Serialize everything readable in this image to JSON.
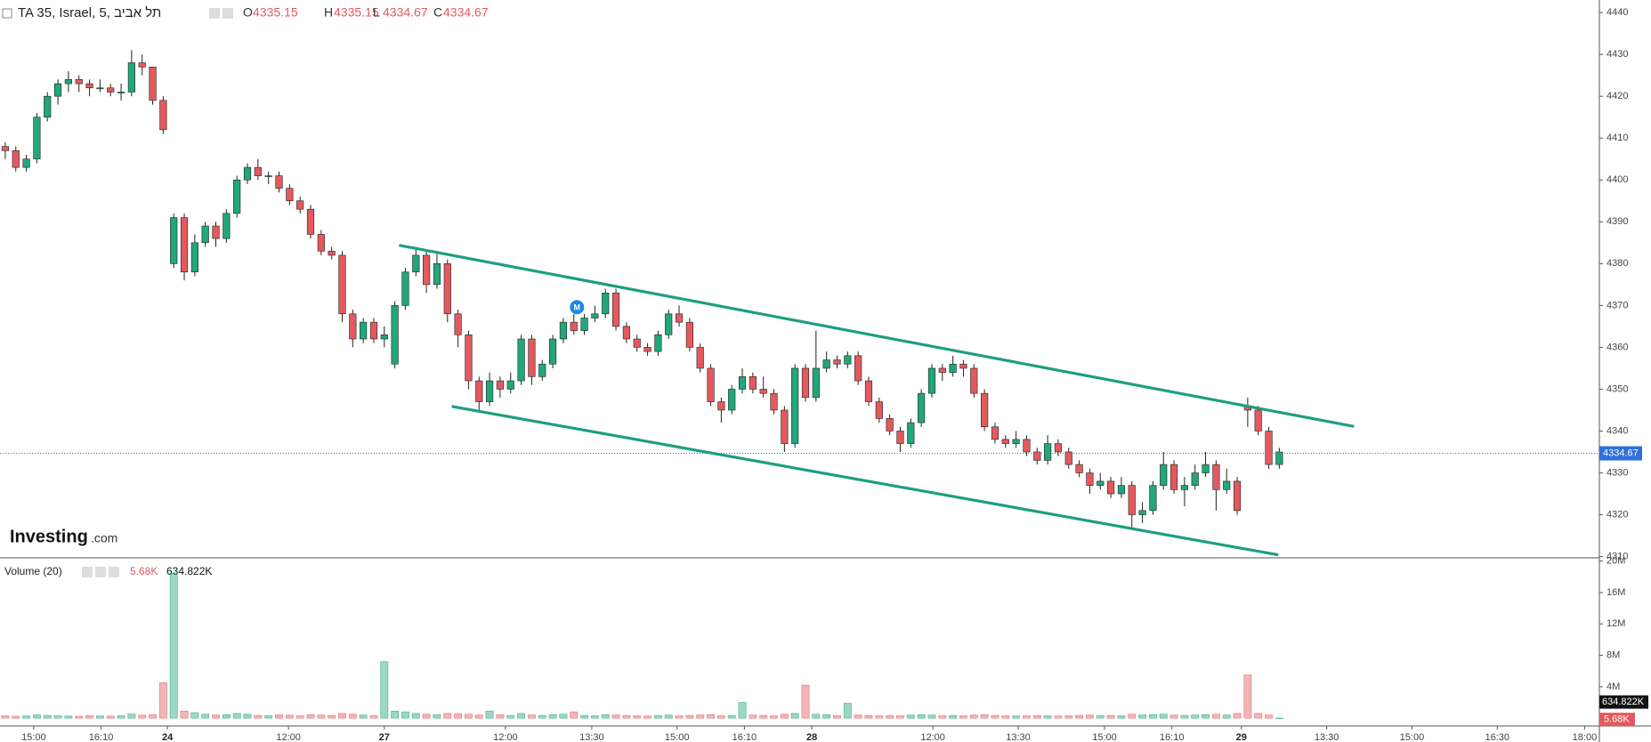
{
  "chart_data": {
    "type": "candlestick",
    "title": "TA 35, Israel, 5, תל אביב",
    "ohlc_labels": [
      "O",
      "H",
      "L",
      "C"
    ],
    "ohlc_values": [
      4335.15,
      4335.15,
      4334.67,
      4334.67
    ],
    "logo": {
      "name": "Investing",
      "suffix": ".com"
    },
    "up_color": "#22a67b",
    "down_color": "#e25a5e",
    "candles": [
      [
        4408,
        4409,
        4405,
        4407
      ],
      [
        4407,
        4408,
        4402,
        4403
      ],
      [
        4403,
        4406,
        4402,
        4405
      ],
      [
        4405,
        4416,
        4404,
        4415
      ],
      [
        4415,
        4421,
        4414,
        4420
      ],
      [
        4420,
        4424,
        4418,
        4423
      ],
      [
        4423,
        4426,
        4421,
        4424
      ],
      [
        4424,
        4425,
        4421,
        4423
      ],
      [
        4423,
        4424,
        4420,
        4422
      ],
      [
        4422,
        4424,
        4421,
        4422
      ],
      [
        4422,
        4423,
        4420,
        4421
      ],
      [
        4421,
        4423,
        4419,
        4421
      ],
      [
        4421,
        4431,
        4420,
        4428
      ],
      [
        4428,
        4430,
        4425,
        4427
      ],
      [
        4427,
        4427,
        4418,
        4419
      ],
      [
        4419,
        4420,
        4411,
        4412
      ],
      [
        4380,
        4392,
        4379,
        4391
      ],
      [
        4391,
        4392,
        4376,
        4378
      ],
      [
        4378,
        4387,
        4377,
        4385
      ],
      [
        4385,
        4390,
        4384,
        4389
      ],
      [
        4389,
        4390,
        4384,
        4386
      ],
      [
        4386,
        4393,
        4385,
        4392
      ],
      [
        4392,
        4401,
        4391,
        4400
      ],
      [
        4400,
        4404,
        4399,
        4403
      ],
      [
        4403,
        4405,
        4400,
        4401
      ],
      [
        4401,
        4402,
        4399,
        4401
      ],
      [
        4401,
        4402,
        4397,
        4398
      ],
      [
        4398,
        4399,
        4394,
        4395
      ],
      [
        4395,
        4396,
        4392,
        4393
      ],
      [
        4393,
        4394,
        4386,
        4387
      ],
      [
        4387,
        4388,
        4382,
        4383
      ],
      [
        4383,
        4384,
        4381,
        4382
      ],
      [
        4382,
        4383,
        4366,
        4368
      ],
      [
        4368,
        4369,
        4360,
        4362
      ],
      [
        4362,
        4367,
        4361,
        4366
      ],
      [
        4366,
        4367,
        4361,
        4362
      ],
      [
        4362,
        4365,
        4360,
        4363
      ],
      [
        4356,
        4371,
        4355,
        4370
      ],
      [
        4370,
        4379,
        4369,
        4378
      ],
      [
        4378,
        4384,
        4377,
        4382
      ],
      [
        4382,
        4383,
        4373,
        4375
      ],
      [
        4375,
        4383,
        4374,
        4380
      ],
      [
        4380,
        4381,
        4366,
        4368
      ],
      [
        4368,
        4369,
        4360,
        4363
      ],
      [
        4363,
        4364,
        4350,
        4352
      ],
      [
        4352,
        4353,
        4345,
        4347
      ],
      [
        4347,
        4354,
        4346,
        4352
      ],
      [
        4352,
        4353,
        4348,
        4350
      ],
      [
        4350,
        4354,
        4349,
        4352
      ],
      [
        4352,
        4363,
        4351,
        4362
      ],
      [
        4362,
        4363,
        4351,
        4353
      ],
      [
        4353,
        4357,
        4352,
        4356
      ],
      [
        4356,
        4363,
        4355,
        4362
      ],
      [
        4362,
        4367,
        4361,
        4366
      ],
      [
        4366,
        4368,
        4363,
        4364
      ],
      [
        4364,
        4368,
        4363,
        4367
      ],
      [
        4367,
        4370,
        4366,
        4368
      ],
      [
        4368,
        4374,
        4367,
        4373
      ],
      [
        4373,
        4374,
        4364,
        4365
      ],
      [
        4365,
        4366,
        4361,
        4362
      ],
      [
        4362,
        4363,
        4359,
        4360
      ],
      [
        4360,
        4361,
        4358,
        4359
      ],
      [
        4359,
        4364,
        4358,
        4363
      ],
      [
        4363,
        4369,
        4362,
        4368
      ],
      [
        4368,
        4370,
        4365,
        4366
      ],
      [
        4366,
        4367,
        4359,
        4360
      ],
      [
        4360,
        4361,
        4354,
        4355
      ],
      [
        4355,
        4356,
        4346,
        4347
      ],
      [
        4347,
        4348,
        4342,
        4345
      ],
      [
        4345,
        4351,
        4344,
        4350
      ],
      [
        4350,
        4355,
        4349,
        4353
      ],
      [
        4353,
        4354,
        4349,
        4350
      ],
      [
        4350,
        4353,
        4348,
        4349
      ],
      [
        4349,
        4350,
        4344,
        4345
      ],
      [
        4345,
        4346,
        4335,
        4337
      ],
      [
        4337,
        4356,
        4336,
        4355
      ],
      [
        4355,
        4356,
        4347,
        4348
      ],
      [
        4348,
        4364,
        4347,
        4355
      ],
      [
        4355,
        4359,
        4354,
        4357
      ],
      [
        4357,
        4358,
        4355,
        4356
      ],
      [
        4356,
        4359,
        4355,
        4358
      ],
      [
        4358,
        4359,
        4351,
        4352
      ],
      [
        4352,
        4353,
        4346,
        4347
      ],
      [
        4347,
        4348,
        4342,
        4343
      ],
      [
        4343,
        4344,
        4339,
        4340
      ],
      [
        4340,
        4341,
        4335,
        4337
      ],
      [
        4337,
        4343,
        4336,
        4342
      ],
      [
        4342,
        4350,
        4341,
        4349
      ],
      [
        4349,
        4356,
        4348,
        4355
      ],
      [
        4355,
        4356,
        4352,
        4354
      ],
      [
        4354,
        4358,
        4353,
        4356
      ],
      [
        4356,
        4357,
        4353,
        4355
      ],
      [
        4355,
        4356,
        4348,
        4349
      ],
      [
        4349,
        4350,
        4340,
        4341
      ],
      [
        4341,
        4342,
        4337,
        4338
      ],
      [
        4338,
        4339,
        4336,
        4337
      ],
      [
        4337,
        4340,
        4336,
        4338
      ],
      [
        4338,
        4339,
        4334,
        4335
      ],
      [
        4335,
        4336,
        4332,
        4333
      ],
      [
        4333,
        4339,
        4332,
        4337
      ],
      [
        4337,
        4338,
        4334,
        4335
      ],
      [
        4335,
        4336,
        4331,
        4332
      ],
      [
        4332,
        4333,
        4329,
        4330
      ],
      [
        4330,
        4331,
        4325,
        4327
      ],
      [
        4327,
        4330,
        4326,
        4328
      ],
      [
        4328,
        4329,
        4324,
        4325
      ],
      [
        4325,
        4329,
        4324,
        4327
      ],
      [
        4327,
        4328,
        4317,
        4320
      ],
      [
        4320,
        4323,
        4318,
        4321
      ],
      [
        4321,
        4328,
        4320,
        4327
      ],
      [
        4327,
        4335,
        4326,
        4332
      ],
      [
        4332,
        4333,
        4325,
        4326
      ],
      [
        4326,
        4329,
        4322,
        4327
      ],
      [
        4327,
        4332,
        4326,
        4330
      ],
      [
        4330,
        4335,
        4329,
        4332
      ],
      [
        4332,
        4333,
        4321,
        4326
      ],
      [
        4326,
        4331,
        4325,
        4328
      ],
      [
        4328,
        4329,
        4320,
        4321
      ],
      [
        4346,
        4348,
        4341,
        4345
      ],
      [
        4345,
        4346,
        4339,
        4340
      ],
      [
        4340,
        4341,
        4331,
        4332
      ],
      [
        4332,
        4336,
        4331,
        4335
      ]
    ],
    "xlim": [
      -0.5,
      151.4
    ],
    "xticks": [
      {
        "value": 2.7,
        "label": "15:00"
      },
      {
        "value": 9.1,
        "label": "16:10"
      },
      {
        "value": 15.4,
        "label": "24"
      },
      {
        "value": 26.9,
        "label": "12:00"
      },
      {
        "value": 36,
        "label": "27"
      },
      {
        "value": 47.5,
        "label": "12:00"
      },
      {
        "value": 55.7,
        "label": "13:30"
      },
      {
        "value": 63.8,
        "label": "15:00"
      },
      {
        "value": 70.2,
        "label": "16:10"
      },
      {
        "value": 76.6,
        "label": "28"
      },
      {
        "value": 88.1,
        "label": "12:00"
      },
      {
        "value": 96.2,
        "label": "13:30"
      },
      {
        "value": 104.4,
        "label": "15:00"
      },
      {
        "value": 110.8,
        "label": "16:10"
      },
      {
        "value": 117.4,
        "label": "29"
      },
      {
        "value": 125.5,
        "label": "13:30"
      },
      {
        "value": 133.6,
        "label": "15:00"
      },
      {
        "value": 141.7,
        "label": "16:30"
      },
      {
        "value": 150,
        "label": "18:00"
      }
    ],
    "ylim": [
      4309.7,
      4443
    ],
    "yticks": [
      4310,
      4320,
      4330,
      4340,
      4350,
      4360,
      4370,
      4380,
      4390,
      4400,
      4410,
      4420,
      4430,
      4440
    ],
    "last_price": 4334.67,
    "last_price_color": "#2f6fde",
    "trendlines": [
      {
        "x": [
          37.4,
          128.1
        ],
        "y": [
          4384.4,
          4341.1
        ]
      },
      {
        "x": [
          42.4,
          120.9
        ],
        "y": [
          4345.9,
          4310.4
        ]
      }
    ],
    "trendline_color": "#1f9e80",
    "events": [
      {
        "x": 54.3,
        "y": 4369.6,
        "label": "M"
      }
    ],
    "volume": {
      "name": "Volume (20)",
      "current_label": "5.68K",
      "ma_label": "634.822K",
      "current": 5680,
      "ma": 634822,
      "values": [
        300000,
        250000,
        280000,
        420000,
        350000,
        300000,
        260000,
        240000,
        310000,
        280000,
        260000,
        300000,
        520000,
        380000,
        450000,
        4500000,
        18500000,
        900000,
        700000,
        500000,
        400000,
        450000,
        600000,
        500000,
        350000,
        300000,
        420000,
        380000,
        300000,
        450000,
        400000,
        350000,
        600000,
        500000,
        400000,
        350000,
        7200000,
        900000,
        800000,
        600000,
        500000,
        450000,
        600000,
        550000,
        500000,
        400000,
        900000,
        450000,
        350000,
        600000,
        400000,
        350000,
        450000,
        500000,
        800000,
        350000,
        300000,
        450000,
        400000,
        350000,
        300000,
        280000,
        350000,
        400000,
        300000,
        350000,
        400000,
        450000,
        300000,
        350000,
        2000000,
        400000,
        350000,
        300000,
        500000,
        600000,
        4200000,
        500000,
        450000,
        350000,
        1900000,
        400000,
        350000,
        300000,
        350000,
        300000,
        400000,
        450000,
        400000,
        300000,
        350000,
        300000,
        400000,
        450000,
        350000,
        300000,
        280000,
        300000,
        350000,
        300000,
        280000,
        300000,
        350000,
        400000,
        300000,
        350000,
        300000,
        500000,
        400000,
        450000,
        500000,
        400000,
        350000,
        400000,
        450000,
        500000,
        400000,
        600000,
        5500000,
        600000,
        400000,
        5680
      ],
      "ylim": [
        -1000000,
        20300000
      ],
      "yticks": [
        {
          "value": 4000000,
          "label": "4M"
        },
        {
          "value": 8000000,
          "label": "8M"
        },
        {
          "value": 12000000,
          "label": "12M"
        },
        {
          "value": 16000000,
          "label": "16M"
        },
        {
          "value": 20000000,
          "label": "20M"
        }
      ]
    }
  }
}
